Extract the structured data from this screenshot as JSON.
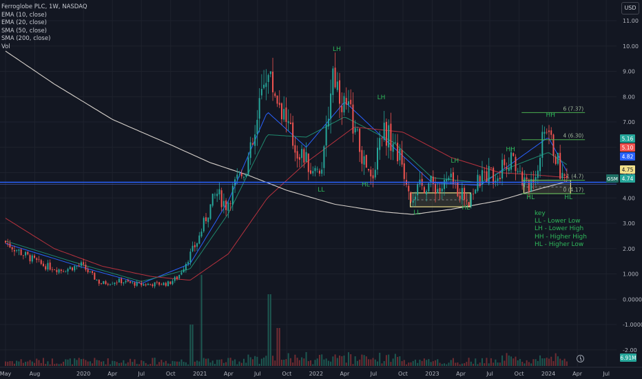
{
  "legend": {
    "title": "Ferroglobe PLC, 1W, NASDAQ",
    "indicators": [
      "EMA (10, close)",
      "EMA (20, close)",
      "SMA (50, close)",
      "SMA (200, close)",
      "Vol"
    ]
  },
  "currency": "USD",
  "key": {
    "title": "key",
    "items": [
      "LL - Lower Low",
      "LH - Lower High",
      "HH - Higher High",
      "HL - Higher Low"
    ]
  },
  "colors": {
    "background": "#131722",
    "up": "#26a69a",
    "down": "#ef5350",
    "ema10": "#2962ff",
    "ema20": "#1f8a6f",
    "sma50": "#b8323e",
    "sma200": "#d8d2cc",
    "support_line": "#2962ff",
    "fib_line": "#4caf50",
    "label_green": "#2fb85b",
    "zone": "#f0e08a"
  },
  "chart_data": {
    "type": "candlestick",
    "title": "Ferroglobe PLC, 1W, NASDAQ",
    "yaxis": {
      "scale": "log",
      "range": [
        -2.0,
        11.5
      ],
      "ticks": [
        "11.00",
        "10.00",
        "9.00",
        "8.00",
        "7.00",
        "6.00",
        "5.00",
        "4.00",
        "3.00",
        "2.00",
        "1.000",
        "0.0000",
        "-1.0000",
        "-2.00"
      ]
    },
    "xaxis": {
      "range": [
        "2019-05-01",
        "2024-07-31"
      ],
      "tick_labels": [
        "May",
        "Aug",
        "2020",
        "Apr",
        "Jul",
        "Oct",
        "2021",
        "Apr",
        "Jul",
        "Oct",
        "2022",
        "Apr",
        "Jul",
        "Oct",
        "2023",
        "Apr",
        "Jul",
        "Oct",
        "2024",
        "Apr",
        "Jul"
      ],
      "ticks": [
        "2019-05-01",
        "2019-08-01",
        "2020-01-01",
        "2020-04-01",
        "2020-07-01",
        "2020-10-01",
        "2021-01-01",
        "2021-04-01",
        "2021-07-01",
        "2021-10-01",
        "2022-01-01",
        "2022-04-01",
        "2022-07-01",
        "2022-10-01",
        "2023-01-01",
        "2023-04-01",
        "2023-07-01",
        "2023-10-01",
        "2024-01-01",
        "2024-04-01",
        "2024-07-01"
      ]
    },
    "price_path": [
      [
        "2019-05-01",
        2.3
      ],
      [
        "2019-07-01",
        1.8
      ],
      [
        "2019-09-01",
        1.35
      ],
      [
        "2019-11-01",
        1.15
      ],
      [
        "2020-01-01",
        1.35
      ],
      [
        "2020-03-01",
        0.62
      ],
      [
        "2020-05-01",
        0.72
      ],
      [
        "2020-07-01",
        0.58
      ],
      [
        "2020-10-01",
        0.62
      ],
      [
        "2020-11-01",
        0.9
      ],
      [
        "2020-12-01",
        1.6
      ],
      [
        "2021-01-01",
        2.3
      ],
      [
        "2021-02-01",
        3.4
      ],
      [
        "2021-03-01",
        4.2
      ],
      [
        "2021-04-01",
        3.7
      ],
      [
        "2021-05-01",
        4.6
      ],
      [
        "2021-06-01",
        5.2
      ],
      [
        "2021-07-01",
        6.4
      ],
      [
        "2021-08-01",
        9.1
      ],
      [
        "2021-09-01",
        8.2
      ],
      [
        "2021-10-01",
        7.3
      ],
      [
        "2021-11-01",
        6.0
      ],
      [
        "2021-12-01",
        5.6
      ],
      [
        "2022-01-01",
        4.9
      ],
      [
        "2022-02-01",
        5.5
      ],
      [
        "2022-03-01",
        9.1
      ],
      [
        "2022-04-01",
        7.8
      ],
      [
        "2022-05-01",
        7.2
      ],
      [
        "2022-06-01",
        5.6
      ],
      [
        "2022-07-01",
        4.6
      ],
      [
        "2022-08-01",
        6.8
      ],
      [
        "2022-09-01",
        6.3
      ],
      [
        "2022-10-01",
        5.5
      ],
      [
        "2022-11-01",
        4.1
      ],
      [
        "2022-12-01",
        4.4
      ],
      [
        "2023-01-01",
        4.6
      ],
      [
        "2023-02-01",
        4.3
      ],
      [
        "2023-03-01",
        4.7
      ],
      [
        "2023-04-01",
        4.3
      ],
      [
        "2023-05-01",
        3.95
      ],
      [
        "2023-06-01",
        4.6
      ],
      [
        "2023-07-01",
        5.0
      ],
      [
        "2023-08-01",
        4.9
      ],
      [
        "2023-09-01",
        5.6
      ],
      [
        "2023-10-01",
        5.2
      ],
      [
        "2023-11-01",
        4.4
      ],
      [
        "2023-12-01",
        5.1
      ],
      [
        "2024-01-01",
        6.9
      ],
      [
        "2024-02-01",
        5.6
      ],
      [
        "2024-02-20",
        4.9
      ],
      [
        "2024-03-01",
        4.74
      ]
    ],
    "moving_averages": {
      "ema10": [
        [
          "2019-05-01",
          2.2
        ],
        [
          "2020-01-01",
          1.25
        ],
        [
          "2020-07-01",
          0.62
        ],
        [
          "2020-12-01",
          1.4
        ],
        [
          "2021-04-01",
          3.9
        ],
        [
          "2021-08-01",
          7.4
        ],
        [
          "2021-12-01",
          6.0
        ],
        [
          "2022-04-01",
          7.8
        ],
        [
          "2022-09-01",
          6.0
        ],
        [
          "2023-01-01",
          4.6
        ],
        [
          "2023-06-01",
          4.5
        ],
        [
          "2023-09-01",
          5.3
        ],
        [
          "2024-01-01",
          6.4
        ],
        [
          "2024-03-01",
          5.0
        ]
      ],
      "ema20": [
        [
          "2019-05-01",
          2.3
        ],
        [
          "2020-01-01",
          1.35
        ],
        [
          "2020-07-01",
          0.7
        ],
        [
          "2020-12-01",
          1.2
        ],
        [
          "2021-04-01",
          3.4
        ],
        [
          "2021-08-01",
          6.5
        ],
        [
          "2021-12-01",
          6.4
        ],
        [
          "2022-04-01",
          7.2
        ],
        [
          "2022-09-01",
          6.2
        ],
        [
          "2023-01-01",
          4.8
        ],
        [
          "2023-06-01",
          4.6
        ],
        [
          "2023-09-01",
          5.2
        ],
        [
          "2024-01-01",
          5.8
        ],
        [
          "2024-03-01",
          5.3
        ]
      ],
      "sma50": [
        [
          "2019-05-01",
          3.2
        ],
        [
          "2019-10-01",
          2.0
        ],
        [
          "2020-03-01",
          1.3
        ],
        [
          "2020-08-01",
          0.9
        ],
        [
          "2020-12-01",
          0.75
        ],
        [
          "2021-04-01",
          1.8
        ],
        [
          "2021-08-01",
          4.0
        ],
        [
          "2021-12-01",
          5.4
        ],
        [
          "2022-05-01",
          6.8
        ],
        [
          "2022-10-01",
          6.6
        ],
        [
          "2023-03-01",
          5.6
        ],
        [
          "2023-08-01",
          5.0
        ],
        [
          "2023-12-01",
          4.9
        ],
        [
          "2024-03-01",
          4.8
        ]
      ],
      "sma200": [
        [
          "2019-05-01",
          9.8
        ],
        [
          "2019-10-01",
          8.5
        ],
        [
          "2020-04-01",
          7.1
        ],
        [
          "2020-10-01",
          6.1
        ],
        [
          "2021-02-01",
          5.4
        ],
        [
          "2021-06-01",
          4.9
        ],
        [
          "2021-10-01",
          4.3
        ],
        [
          "2022-03-01",
          3.75
        ],
        [
          "2022-08-01",
          3.45
        ],
        [
          "2022-11-01",
          3.35
        ],
        [
          "2023-03-01",
          3.55
        ],
        [
          "2023-08-01",
          3.9
        ],
        [
          "2023-12-01",
          4.35
        ],
        [
          "2024-03-01",
          4.65
        ]
      ]
    },
    "volume_note": "weekly volume bars, last value 6.91M",
    "price_labels": [
      {
        "text": "5.16",
        "color": "#26a69a"
      },
      {
        "text": "5.10",
        "color": "#ef5350"
      },
      {
        "text": "4.82",
        "color": "#2962ff"
      },
      {
        "text": "4.75",
        "color": "#f0e08a"
      },
      {
        "text": "4.74",
        "color": "#26a69a"
      },
      {
        "text": "6.91M",
        "color": "#26a69a"
      }
    ],
    "symbol_tag": "GSM",
    "support_level": 4.62,
    "fib_levels": [
      {
        "label": "6 (7.37)",
        "value": 7.37
      },
      {
        "label": "4 (6.30)",
        "value": 6.3
      },
      {
        "label": "1 (4.7)",
        "value": 4.7
      },
      {
        "label": "0 (4.17)",
        "value": 4.17
      }
    ],
    "swing_labels": [
      {
        "text": "LH",
        "date": "2022-03-07",
        "value": 9.8
      },
      {
        "text": "LH",
        "date": "2022-07-25",
        "value": 7.9
      },
      {
        "text": "LH",
        "date": "2023-03-13",
        "value": 5.4
      },
      {
        "text": "HH",
        "date": "2023-09-04",
        "value": 5.85
      },
      {
        "text": "HH",
        "date": "2024-01-08",
        "value": 7.2
      },
      {
        "text": "LL",
        "date": "2022-01-17",
        "value": 4.25
      },
      {
        "text": "HL",
        "date": "2022-06-06",
        "value": 4.45
      },
      {
        "text": "LL",
        "date": "2022-11-14",
        "value": 3.35
      },
      {
        "text": "HL",
        "date": "2023-04-17",
        "value": 3.55
      },
      {
        "text": "HL",
        "date": "2023-11-06",
        "value": 3.95
      },
      {
        "text": "HL",
        "date": "2024-03-04",
        "value": 3.95
      }
    ],
    "zones": [
      {
        "from": "2022-10-24",
        "to": "2023-05-01",
        "low": 3.65,
        "high": 4.2
      },
      {
        "from": "2023-10-16",
        "to": "2024-03-11",
        "low": 4.17,
        "high": 4.7
      }
    ]
  }
}
